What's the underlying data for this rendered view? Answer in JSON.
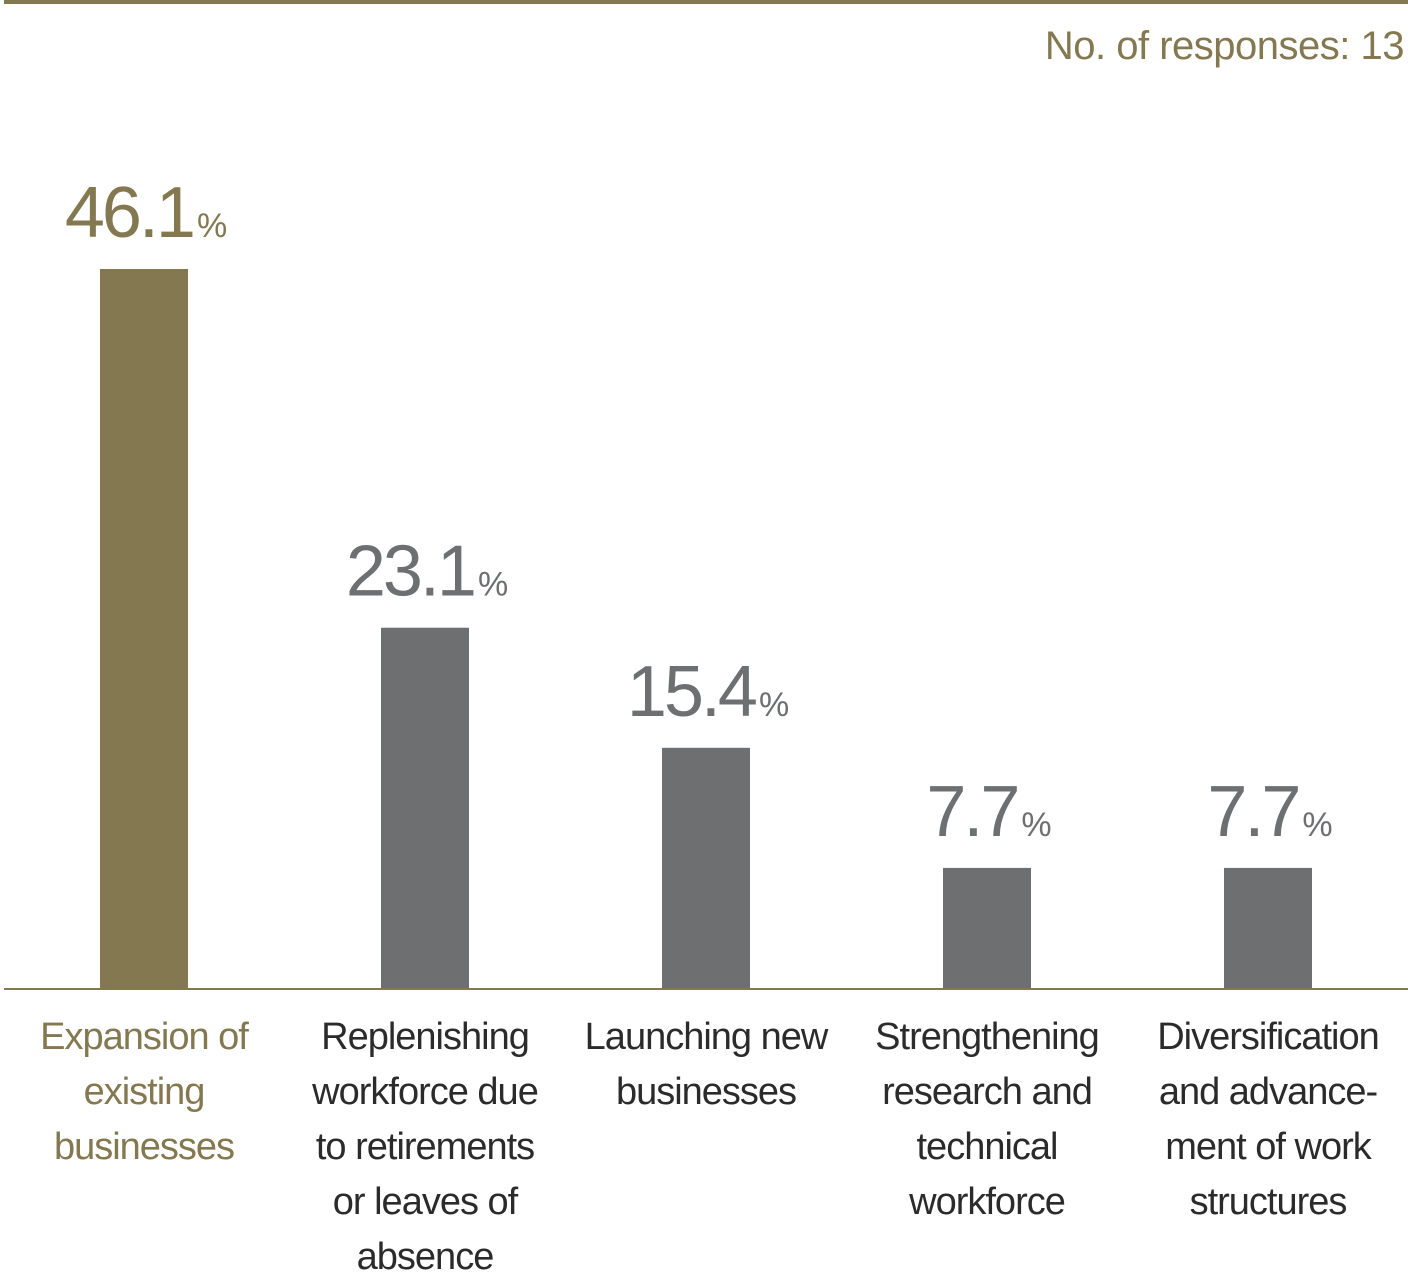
{
  "header": {
    "responses_label": "No. of responses: 13"
  },
  "colors": {
    "highlight": "#847850",
    "default": "#6e6f71",
    "axis": "#847850",
    "value_highlight": "#847850",
    "value_default": "#6e6f71"
  },
  "chart_data": {
    "type": "bar",
    "categories": [
      "Expansion of existing businesses",
      "Replenishing workforce due to retirements or leaves of absence",
      "Launching new businesses",
      "Strengthening research and technical workforce",
      "Diversification and advance-ment of work structures"
    ],
    "category_lines": [
      [
        "Expansion of",
        "existing",
        "businesses"
      ],
      [
        "Replenishing",
        "workforce due",
        "to retirements",
        "or leaves of",
        "absence"
      ],
      [
        "Launching new",
        "businesses"
      ],
      [
        "Strengthening",
        "research and",
        "technical",
        "workforce"
      ],
      [
        "Diversification",
        "and advance-",
        "ment of work",
        "structures"
      ]
    ],
    "values": [
      46.1,
      23.1,
      15.4,
      7.7,
      7.7
    ],
    "value_labels": [
      "46.1",
      "23.1",
      "15.4",
      "7.7",
      "7.7"
    ],
    "unit": "%",
    "highlight_index": 0,
    "ylim": [
      0,
      46.1
    ],
    "grid": false,
    "legend": "none"
  }
}
